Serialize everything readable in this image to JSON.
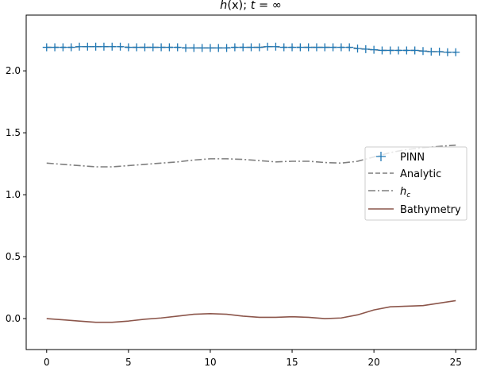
{
  "chart_data": {
    "type": "line",
    "title_parts": {
      "h": "h",
      "x": "(x)",
      "sep": "; ",
      "t": "t",
      "eq": " = ",
      "inf": "∞"
    },
    "xlim": [
      -1.25,
      26.25
    ],
    "ylim": [
      -0.25,
      2.45
    ],
    "xticks": [
      0,
      5,
      10,
      15,
      20,
      25
    ],
    "yticks": [
      0.0,
      0.5,
      1.0,
      1.5,
      2.0
    ],
    "xtick_labels": [
      "0",
      "5",
      "10",
      "15",
      "20",
      "25"
    ],
    "ytick_labels": [
      "0.0",
      "0.5",
      "1.0",
      "1.5",
      "2.0"
    ],
    "grid": false,
    "legend_position": "center-right",
    "series": [
      {
        "name": "PINN",
        "style": "markers",
        "marker": "+",
        "color": "#1f77b4",
        "x": [
          0,
          0.5,
          1,
          1.5,
          2,
          2.5,
          3,
          3.5,
          4,
          4.5,
          5,
          5.5,
          6,
          6.5,
          7,
          7.5,
          8,
          8.5,
          9,
          9.5,
          10,
          10.5,
          11,
          11.5,
          12,
          12.5,
          13,
          13.5,
          14,
          14.5,
          15,
          15.5,
          16,
          16.5,
          17,
          17.5,
          18,
          18.5,
          19,
          19.5,
          20,
          20.5,
          21,
          21.5,
          22,
          22.5,
          23,
          23.5,
          24,
          24.5,
          25
        ],
        "y": [
          2.19,
          2.19,
          2.19,
          2.19,
          2.195,
          2.195,
          2.195,
          2.195,
          2.195,
          2.195,
          2.19,
          2.19,
          2.19,
          2.19,
          2.19,
          2.19,
          2.19,
          2.185,
          2.185,
          2.185,
          2.185,
          2.185,
          2.185,
          2.19,
          2.19,
          2.19,
          2.19,
          2.195,
          2.195,
          2.19,
          2.19,
          2.19,
          2.19,
          2.19,
          2.19,
          2.19,
          2.19,
          2.19,
          2.18,
          2.175,
          2.17,
          2.165,
          2.165,
          2.165,
          2.165,
          2.165,
          2.16,
          2.155,
          2.155,
          2.15,
          2.15
        ]
      },
      {
        "name": "Analytic",
        "style": "dashed",
        "color": "#7f7f7f",
        "x": [
          0,
          0.5,
          1,
          1.5,
          2,
          2.5,
          3,
          3.5,
          4,
          4.5,
          5,
          5.5,
          6,
          6.5,
          7,
          7.5,
          8,
          8.5,
          9,
          9.5,
          10,
          10.5,
          11,
          11.5,
          12,
          12.5,
          13,
          13.5,
          14,
          14.5,
          15,
          15.5,
          16,
          16.5,
          17,
          17.5,
          18,
          18.5,
          19,
          19.5,
          20,
          20.5,
          21,
          21.5,
          22,
          22.5,
          23,
          23.5,
          24,
          24.5,
          25
        ],
        "y": [
          2.19,
          2.19,
          2.19,
          2.19,
          2.195,
          2.195,
          2.195,
          2.195,
          2.195,
          2.195,
          2.19,
          2.19,
          2.19,
          2.19,
          2.19,
          2.19,
          2.19,
          2.185,
          2.185,
          2.185,
          2.185,
          2.185,
          2.185,
          2.19,
          2.19,
          2.19,
          2.19,
          2.195,
          2.195,
          2.19,
          2.19,
          2.19,
          2.19,
          2.19,
          2.19,
          2.19,
          2.19,
          2.19,
          2.18,
          2.175,
          2.17,
          2.165,
          2.165,
          2.165,
          2.165,
          2.165,
          2.16,
          2.155,
          2.155,
          2.15,
          2.15
        ]
      },
      {
        "name_base": "h",
        "name_sub": "c",
        "style": "dashdot",
        "color": "#7f7f7f",
        "x": [
          0,
          1,
          2,
          3,
          4,
          5,
          6,
          7,
          8,
          9,
          10,
          11,
          12,
          13,
          14,
          15,
          16,
          17,
          18,
          19,
          20,
          21,
          22,
          23,
          24,
          25
        ],
        "y": [
          1.255,
          1.245,
          1.235,
          1.225,
          1.225,
          1.235,
          1.245,
          1.255,
          1.265,
          1.28,
          1.29,
          1.29,
          1.285,
          1.275,
          1.265,
          1.27,
          1.27,
          1.26,
          1.255,
          1.27,
          1.305,
          1.34,
          1.365,
          1.38,
          1.39,
          1.4
        ]
      },
      {
        "name": "Bathymetry",
        "style": "solid",
        "color": "#8c564b",
        "x": [
          0,
          1,
          2,
          3,
          4,
          5,
          6,
          7,
          8,
          9,
          10,
          11,
          12,
          13,
          14,
          15,
          16,
          17,
          18,
          19,
          20,
          21,
          22,
          23,
          24,
          25
        ],
        "y": [
          0.0,
          -0.01,
          -0.02,
          -0.03,
          -0.03,
          -0.02,
          -0.005,
          0.005,
          0.02,
          0.035,
          0.04,
          0.035,
          0.02,
          0.01,
          0.01,
          0.015,
          0.01,
          0.0,
          0.005,
          0.03,
          0.07,
          0.095,
          0.1,
          0.105,
          0.125,
          0.145
        ]
      }
    ]
  }
}
